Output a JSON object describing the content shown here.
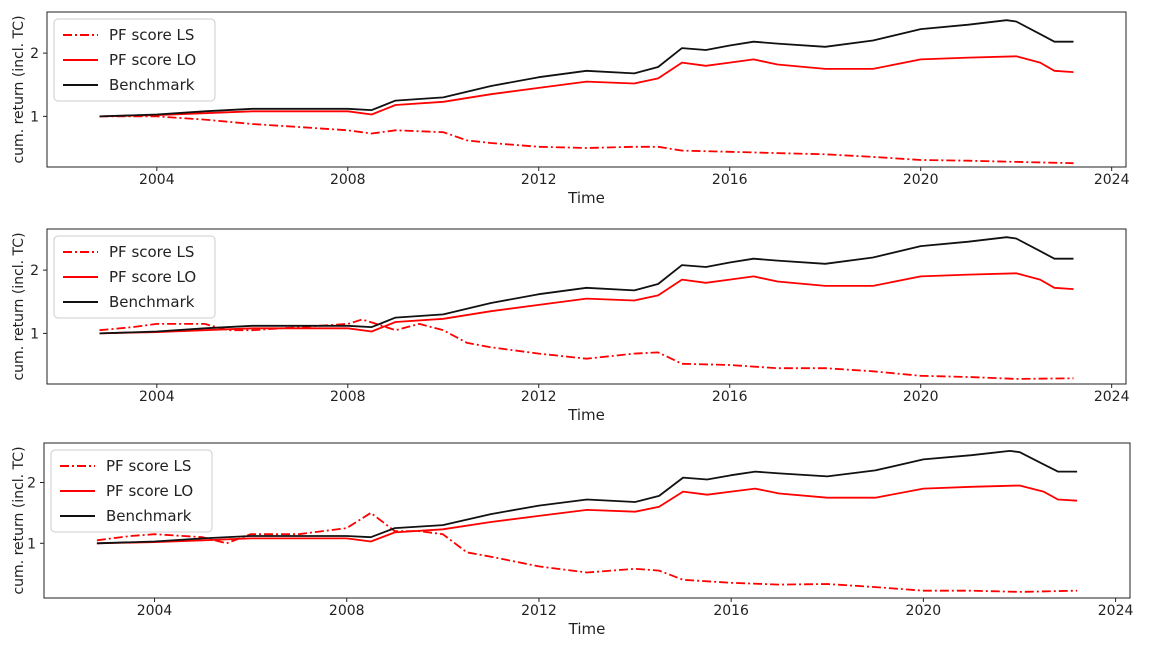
{
  "chart_data": [
    {
      "type": "line",
      "xlabel": "Time",
      "ylabel": "cum. return (incl. TC)",
      "xlim": [
        2001.7,
        2024.3
      ],
      "ylim": [
        0.2,
        2.65
      ],
      "xticks": [
        2004,
        2008,
        2012,
        2016,
        2020,
        2024
      ],
      "xtick_labels": [
        "2004",
        "2008",
        "2012",
        "2016",
        "2020",
        "2024"
      ],
      "yticks": [
        1,
        2
      ],
      "ytick_labels": [
        "1",
        "2"
      ],
      "grid": false,
      "legend_position": "top-left",
      "series": [
        {
          "name": "PF score LS",
          "color": "#ff0000",
          "dash": "dashdot",
          "x": [
            2002.8,
            2004,
            2005,
            2006,
            2007,
            2008,
            2008.5,
            2009,
            2010,
            2010.5,
            2011,
            2012,
            2013,
            2014,
            2014.5,
            2015,
            2016,
            2017,
            2018,
            2019,
            2020,
            2021,
            2022,
            2023.2
          ],
          "y": [
            1.0,
            1.0,
            0.95,
            0.88,
            0.83,
            0.78,
            0.73,
            0.78,
            0.75,
            0.62,
            0.58,
            0.52,
            0.5,
            0.52,
            0.52,
            0.46,
            0.44,
            0.42,
            0.4,
            0.36,
            0.31,
            0.3,
            0.28,
            0.26
          ]
        },
        {
          "name": "PF score LO",
          "color": "#ff0000",
          "dash": "solid",
          "x": [
            2002.8,
            2004,
            2005,
            2006,
            2007,
            2008,
            2008.5,
            2009,
            2010,
            2011,
            2012,
            2013,
            2014,
            2014.5,
            2015,
            2015.5,
            2016,
            2016.5,
            2017,
            2018,
            2019,
            2020,
            2021,
            2022,
            2022.5,
            2022.8,
            2023.2
          ],
          "y": [
            1.0,
            1.02,
            1.05,
            1.08,
            1.08,
            1.08,
            1.03,
            1.18,
            1.23,
            1.35,
            1.45,
            1.55,
            1.52,
            1.6,
            1.85,
            1.8,
            1.85,
            1.9,
            1.82,
            1.75,
            1.75,
            1.9,
            1.93,
            1.95,
            1.85,
            1.72,
            1.7
          ]
        },
        {
          "name": "Benchmark",
          "color": "#111111",
          "dash": "solid",
          "x": [
            2002.8,
            2004,
            2005,
            2006,
            2007,
            2008,
            2008.5,
            2009,
            2010,
            2011,
            2012,
            2013,
            2014,
            2014.5,
            2015,
            2015.5,
            2016,
            2016.5,
            2017,
            2018,
            2019,
            2020,
            2021,
            2021.8,
            2022,
            2022.5,
            2022.8,
            2023.2
          ],
          "y": [
            1.0,
            1.03,
            1.08,
            1.12,
            1.12,
            1.12,
            1.1,
            1.25,
            1.3,
            1.48,
            1.62,
            1.72,
            1.68,
            1.78,
            2.08,
            2.05,
            2.12,
            2.18,
            2.15,
            2.1,
            2.2,
            2.38,
            2.45,
            2.52,
            2.5,
            2.3,
            2.18,
            2.18
          ]
        }
      ]
    },
    {
      "type": "line",
      "xlabel": "Time",
      "ylabel": "cum. return (incl. TC)",
      "xlim": [
        2001.7,
        2024.3
      ],
      "ylim": [
        0.2,
        2.65
      ],
      "xticks": [
        2004,
        2008,
        2012,
        2016,
        2020,
        2024
      ],
      "xtick_labels": [
        "2004",
        "2008",
        "2012",
        "2016",
        "2020",
        "2024"
      ],
      "yticks": [
        1,
        2
      ],
      "ytick_labels": [
        "1",
        "2"
      ],
      "grid": false,
      "legend_position": "top-left",
      "series": [
        {
          "name": "PF score LS",
          "color": "#ff0000",
          "dash": "dashdot",
          "x": [
            2002.8,
            2003.5,
            2004,
            2005,
            2005.5,
            2006,
            2007,
            2008,
            2008.3,
            2008.6,
            2009,
            2009.5,
            2010,
            2010.5,
            2011,
            2012,
            2013,
            2014,
            2014.5,
            2015,
            2016,
            2017,
            2018,
            2019,
            2020,
            2021,
            2022,
            2023.2
          ],
          "y": [
            1.05,
            1.1,
            1.15,
            1.15,
            1.05,
            1.05,
            1.1,
            1.15,
            1.22,
            1.15,
            1.05,
            1.15,
            1.05,
            0.85,
            0.78,
            0.68,
            0.6,
            0.68,
            0.7,
            0.52,
            0.5,
            0.45,
            0.45,
            0.4,
            0.33,
            0.31,
            0.28,
            0.29
          ]
        },
        {
          "name": "PF score LO",
          "color": "#ff0000",
          "dash": "solid",
          "x": [
            2002.8,
            2004,
            2005,
            2006,
            2007,
            2008,
            2008.5,
            2009,
            2010,
            2011,
            2012,
            2013,
            2014,
            2014.5,
            2015,
            2015.5,
            2016,
            2016.5,
            2017,
            2018,
            2019,
            2020,
            2021,
            2022,
            2022.5,
            2022.8,
            2023.2
          ],
          "y": [
            1.0,
            1.02,
            1.05,
            1.08,
            1.08,
            1.08,
            1.03,
            1.18,
            1.23,
            1.35,
            1.45,
            1.55,
            1.52,
            1.6,
            1.85,
            1.8,
            1.85,
            1.9,
            1.82,
            1.75,
            1.75,
            1.9,
            1.93,
            1.95,
            1.85,
            1.72,
            1.7
          ]
        },
        {
          "name": "Benchmark",
          "color": "#111111",
          "dash": "solid",
          "x": [
            2002.8,
            2004,
            2005,
            2006,
            2007,
            2008,
            2008.5,
            2009,
            2010,
            2011,
            2012,
            2013,
            2014,
            2014.5,
            2015,
            2015.5,
            2016,
            2016.5,
            2017,
            2018,
            2019,
            2020,
            2021,
            2021.8,
            2022,
            2022.5,
            2022.8,
            2023.2
          ],
          "y": [
            1.0,
            1.03,
            1.08,
            1.12,
            1.12,
            1.12,
            1.1,
            1.25,
            1.3,
            1.48,
            1.62,
            1.72,
            1.68,
            1.78,
            2.08,
            2.05,
            2.12,
            2.18,
            2.15,
            2.1,
            2.2,
            2.38,
            2.45,
            2.52,
            2.5,
            2.3,
            2.18,
            2.18
          ]
        }
      ]
    },
    {
      "type": "line",
      "xlabel": "Time",
      "ylabel": "cum. return (incl. TC)",
      "xlim": [
        2001.7,
        2024.3
      ],
      "ylim": [
        0.1,
        2.65
      ],
      "xticks": [
        2004,
        2008,
        2012,
        2016,
        2020,
        2024
      ],
      "xtick_labels": [
        "2004",
        "2008",
        "2012",
        "2016",
        "2020",
        "2024"
      ],
      "yticks": [
        1,
        2
      ],
      "ytick_labels": [
        "1",
        "2"
      ],
      "grid": false,
      "legend_position": "top-left",
      "series": [
        {
          "name": "PF score LS",
          "color": "#ff0000",
          "dash": "dashdot",
          "x": [
            2002.8,
            2003.5,
            2004,
            2005,
            2005.5,
            2006,
            2007,
            2008,
            2008.5,
            2009,
            2009.5,
            2010,
            2010.5,
            2011,
            2012,
            2013,
            2014,
            2014.5,
            2015,
            2016,
            2017,
            2018,
            2019,
            2020,
            2021,
            2022,
            2023.2
          ],
          "y": [
            1.05,
            1.12,
            1.15,
            1.1,
            1.0,
            1.15,
            1.15,
            1.25,
            1.5,
            1.2,
            1.2,
            1.15,
            0.85,
            0.78,
            0.62,
            0.52,
            0.58,
            0.55,
            0.4,
            0.35,
            0.32,
            0.33,
            0.28,
            0.22,
            0.22,
            0.2,
            0.22
          ]
        },
        {
          "name": "PF score LO",
          "color": "#ff0000",
          "dash": "solid",
          "x": [
            2002.8,
            2004,
            2005,
            2006,
            2007,
            2008,
            2008.5,
            2009,
            2010,
            2011,
            2012,
            2013,
            2014,
            2014.5,
            2015,
            2015.5,
            2016,
            2016.5,
            2017,
            2018,
            2019,
            2020,
            2021,
            2022,
            2022.5,
            2022.8,
            2023.2
          ],
          "y": [
            1.0,
            1.02,
            1.05,
            1.08,
            1.08,
            1.08,
            1.03,
            1.18,
            1.23,
            1.35,
            1.45,
            1.55,
            1.52,
            1.6,
            1.85,
            1.8,
            1.85,
            1.9,
            1.82,
            1.75,
            1.75,
            1.9,
            1.93,
            1.95,
            1.85,
            1.72,
            1.7
          ]
        },
        {
          "name": "Benchmark",
          "color": "#111111",
          "dash": "solid",
          "x": [
            2002.8,
            2004,
            2005,
            2006,
            2007,
            2008,
            2008.5,
            2009,
            2010,
            2011,
            2012,
            2013,
            2014,
            2014.5,
            2015,
            2015.5,
            2016,
            2016.5,
            2017,
            2018,
            2019,
            2020,
            2021,
            2021.8,
            2022,
            2022.5,
            2022.8,
            2023.2
          ],
          "y": [
            1.0,
            1.03,
            1.08,
            1.12,
            1.12,
            1.12,
            1.1,
            1.25,
            1.3,
            1.48,
            1.62,
            1.72,
            1.68,
            1.78,
            2.08,
            2.05,
            2.12,
            2.18,
            2.15,
            2.1,
            2.2,
            2.38,
            2.45,
            2.52,
            2.5,
            2.3,
            2.18,
            2.18
          ]
        }
      ]
    }
  ]
}
